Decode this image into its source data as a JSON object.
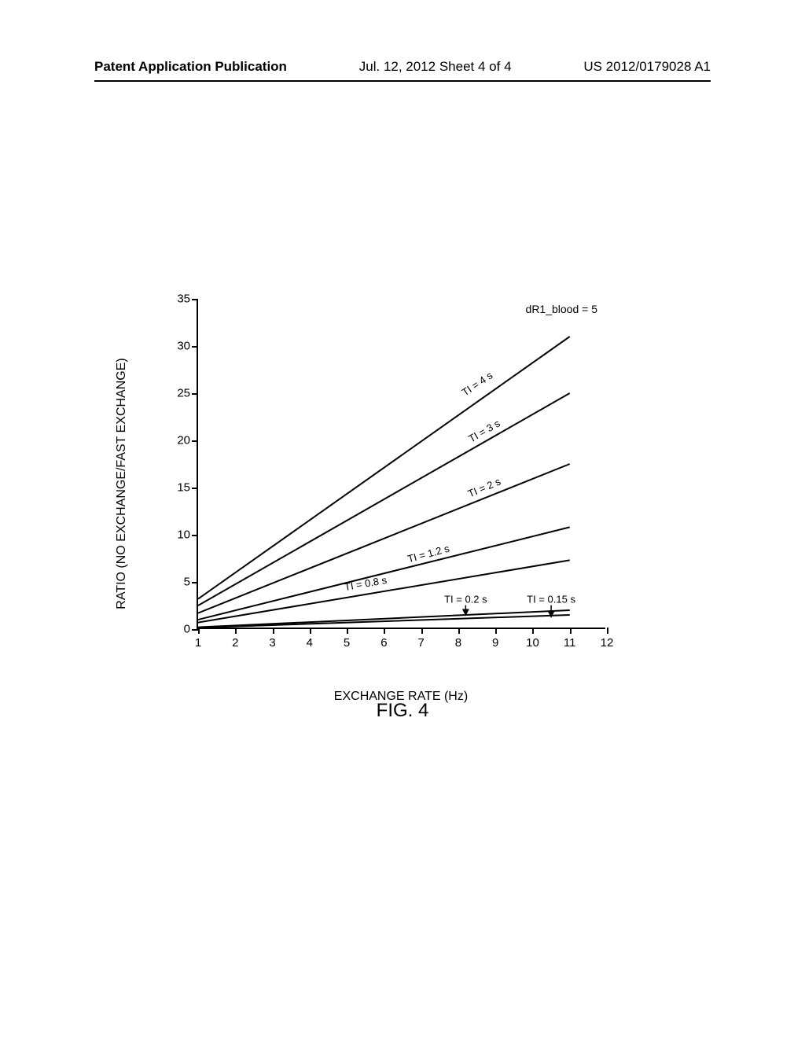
{
  "header": {
    "left": "Patent Application Publication",
    "center": "Jul. 12, 2012  Sheet 4 of 4",
    "right": "US 2012/0179028 A1"
  },
  "chart": {
    "type": "line",
    "xlabel": "EXCHANGE RATE (Hz)",
    "ylabel": "RATIO (NO EXCHANGE/FAST EXCHANGE)",
    "annotation": "dR1_blood = 5",
    "xlim": [
      1,
      12
    ],
    "ylim": [
      0,
      35
    ],
    "xtick_step": 1,
    "ytick_step": 5,
    "xticks": [
      1,
      2,
      3,
      4,
      5,
      6,
      7,
      8,
      9,
      10,
      11,
      12
    ],
    "yticks": [
      0,
      5,
      10,
      15,
      20,
      25,
      30,
      35
    ],
    "background_color": "#ffffff",
    "line_color": "#000000",
    "line_width": 2,
    "label_fontsize": 16,
    "tick_fontsize": 15,
    "series": [
      {
        "name": "TI = 4 s",
        "x1": 1,
        "y1": 3.2,
        "x2": 11,
        "y2": 31,
        "label_x": 8.5,
        "label_y": 26,
        "rotation": -34
      },
      {
        "name": "TI = 3 s",
        "x1": 1,
        "y1": 2.5,
        "x2": 11,
        "y2": 25,
        "label_x": 8.7,
        "label_y": 21,
        "rotation": -30
      },
      {
        "name": "TI = 2 s",
        "x1": 1,
        "y1": 1.7,
        "x2": 11,
        "y2": 17.5,
        "label_x": 8.7,
        "label_y": 15,
        "rotation": -23
      },
      {
        "name": "TI = 1.2 s",
        "x1": 1,
        "y1": 1.0,
        "x2": 11,
        "y2": 10.8,
        "label_x": 7.2,
        "label_y": 8,
        "rotation": -15
      },
      {
        "name": "TI = 0.8 s",
        "x1": 1,
        "y1": 0.7,
        "x2": 11,
        "y2": 7.3,
        "label_x": 5.5,
        "label_y": 4.8,
        "rotation": -10
      },
      {
        "name": "TI = 0.2 s",
        "x1": 1,
        "y1": 0.2,
        "x2": 11,
        "y2": 2.0,
        "label_x": 8.2,
        "label_y": 3.2,
        "rotation": 0,
        "arrow_to_x": 8.2,
        "arrow_to_y": 1.5
      },
      {
        "name": "TI = 0.15 s",
        "x1": 1,
        "y1": 0.15,
        "x2": 11,
        "y2": 1.5,
        "label_x": 10.5,
        "label_y": 3.2,
        "rotation": 0,
        "arrow_to_x": 10.5,
        "arrow_to_y": 1.3
      }
    ]
  },
  "caption": "FIG. 4"
}
